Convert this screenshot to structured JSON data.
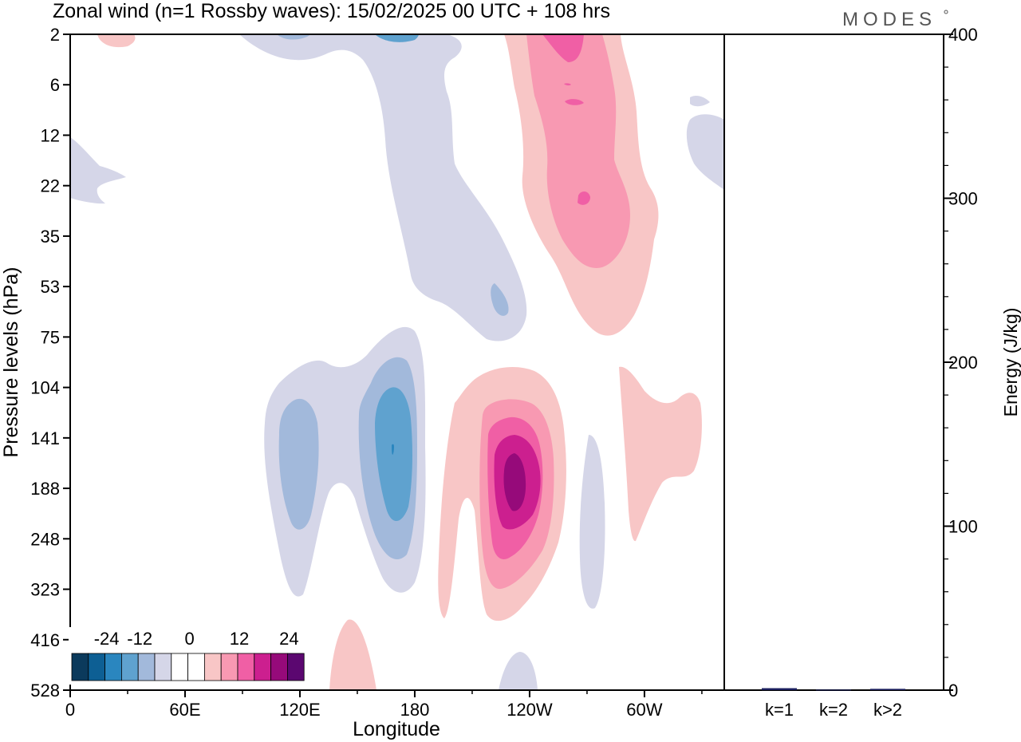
{
  "chart_data": [
    {
      "type": "heatmap",
      "title": "Zonal wind (n=1 Rossby waves):  15/02/2025  00 UTC  + 108 hrs",
      "xlabel": "Longitude",
      "ylabel": "Pressure levels (hPa)",
      "x_ticks": [
        "0",
        "60E",
        "120E",
        "180",
        "120W",
        "60W"
      ],
      "y_ticks": [
        "2",
        "6",
        "12",
        "22",
        "35",
        "53",
        "75",
        "104",
        "141",
        "188",
        "248",
        "323",
        "416",
        "528"
      ],
      "colorbar": {
        "tick_labels": [
          "-24",
          "-12",
          "0",
          "12",
          "24"
        ],
        "colors": [
          "#0b3a5c",
          "#0d5f94",
          "#2a86bf",
          "#5fa2cf",
          "#a2b9db",
          "#d5d6e8",
          "#ffffff",
          "#ffffff",
          "#f8c6c6",
          "#f899b2",
          "#f05fa5",
          "#cc1f8f",
          "#960a7a",
          "#5b0770"
        ]
      },
      "features": [
        {
          "sign": "positive",
          "peak": 24,
          "longitude_deg": 221,
          "pressure_hPa": 160
        },
        {
          "sign": "negative",
          "peak": -16,
          "longitude_deg": 181,
          "pressure_hPa": 150
        },
        {
          "sign": "negative",
          "peak": -12,
          "longitude_deg": 128,
          "pressure_hPa": 160
        },
        {
          "sign": "positive",
          "peak": 16,
          "longitude_deg": 232,
          "pressure_hPa": 3
        },
        {
          "sign": "positive",
          "peak": 6,
          "longitude_deg": 279,
          "pressure_hPa": 160
        },
        {
          "sign": "negative",
          "peak": -6,
          "longitude_deg": 200,
          "pressure_hPa": 20
        }
      ],
      "brand": "MODES"
    },
    {
      "type": "bar",
      "ylabel": "Energy (J/kg)",
      "ylim": [
        0,
        400
      ],
      "y_ticks": [
        "0",
        "100",
        "200",
        "300",
        "400"
      ],
      "categories": [
        "k=1",
        "k=2",
        "k>2"
      ],
      "values": [
        1.2,
        0.3,
        0.8
      ],
      "bar_color": "#1b1f5e"
    }
  ]
}
